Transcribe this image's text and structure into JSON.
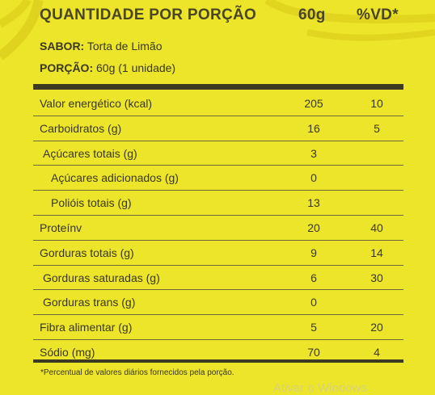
{
  "header": {
    "title": "QUANTIDADE POR PORÇÃO",
    "quantity_col": "60g",
    "vd_col": "%VD*"
  },
  "meta": {
    "sabor_label": "SABOR:",
    "sabor_value": "Torta de Limão",
    "porcao_label": "PORÇÃO:",
    "porcao_value": "60g (1 unidade)"
  },
  "rows": [
    {
      "label": "Valor energético (kcal)",
      "qty": "205",
      "vd": "10",
      "indent": 0
    },
    {
      "label": "Carboidratos (g)",
      "qty": "16",
      "vd": "5",
      "indent": 0
    },
    {
      "label": "Açúcares totais (g)",
      "qty": "3",
      "vd": "",
      "indent": 1
    },
    {
      "label": "Açúcares adicionados (g)",
      "qty": "0",
      "vd": "",
      "indent": 2
    },
    {
      "label": "Polióis totais (g)",
      "qty": "13",
      "vd": "",
      "indent": 2
    },
    {
      "label": "Proteínv",
      "qty": "20",
      "vd": "40",
      "indent": 0
    },
    {
      "label": "Gorduras totais (g)",
      "qty": "9",
      "vd": "14",
      "indent": 0
    },
    {
      "label": "Gorduras saturadas (g)",
      "qty": "6",
      "vd": "30",
      "indent": 1
    },
    {
      "label": "Gorduras trans (g)",
      "qty": "0",
      "vd": "",
      "indent": 1
    },
    {
      "label": "Fibra alimentar (g)",
      "qty": "5",
      "vd": "20",
      "indent": 0
    },
    {
      "label": "Sódio (mg)",
      "qty": "70",
      "vd": "4",
      "indent": 0
    }
  ],
  "footnote": "*Percentual de valores diários fornecidos pela porção.",
  "watermark": "Ativar o Windows",
  "colors": {
    "background": "#ece52a",
    "text": "#3b3720",
    "rule": "#3d3a24"
  }
}
